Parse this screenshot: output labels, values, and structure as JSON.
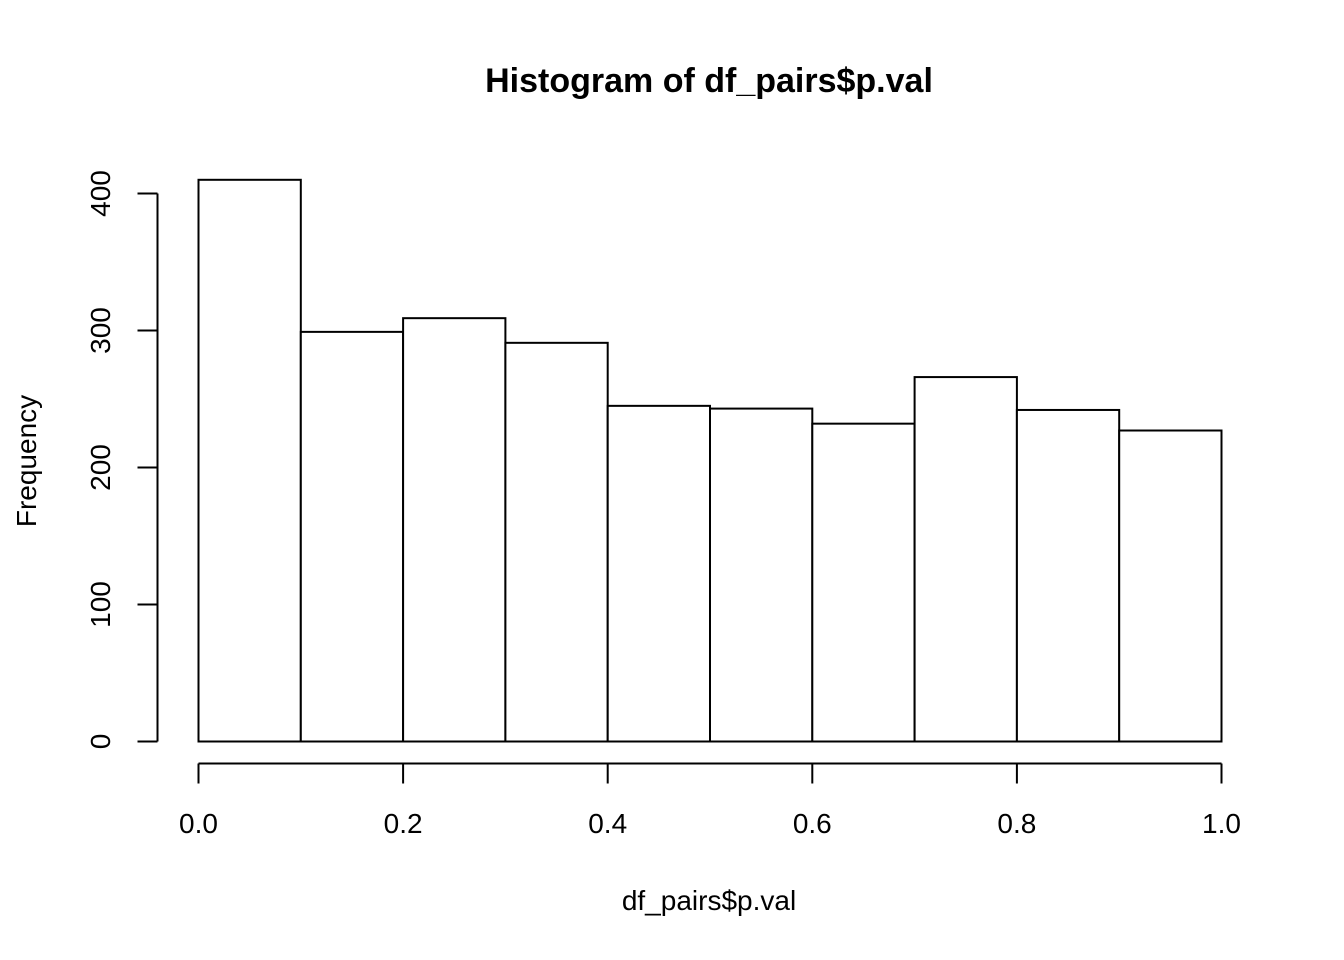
{
  "chart_data": {
    "type": "bar",
    "title": "Histogram of df_pairs$p.val",
    "xlabel": "df_pairs$p.val",
    "ylabel": "Frequency",
    "bins": [
      {
        "start": 0.0,
        "end": 0.1,
        "count": 410
      },
      {
        "start": 0.1,
        "end": 0.2,
        "count": 299
      },
      {
        "start": 0.2,
        "end": 0.3,
        "count": 309
      },
      {
        "start": 0.3,
        "end": 0.4,
        "count": 291
      },
      {
        "start": 0.4,
        "end": 0.5,
        "count": 245
      },
      {
        "start": 0.5,
        "end": 0.6,
        "count": 243
      },
      {
        "start": 0.6,
        "end": 0.7,
        "count": 232
      },
      {
        "start": 0.7,
        "end": 0.8,
        "count": 266
      },
      {
        "start": 0.8,
        "end": 0.9,
        "count": 242
      },
      {
        "start": 0.9,
        "end": 1.0,
        "count": 227
      }
    ],
    "xlim": [
      0,
      1
    ],
    "ylim": [
      0,
      400
    ],
    "x_ticks": [
      {
        "value": 0.0,
        "label": "0.0"
      },
      {
        "value": 0.2,
        "label": "0.2"
      },
      {
        "value": 0.4,
        "label": "0.4"
      },
      {
        "value": 0.6,
        "label": "0.6"
      },
      {
        "value": 0.8,
        "label": "0.8"
      },
      {
        "value": 1.0,
        "label": "1.0"
      }
    ],
    "y_ticks": [
      {
        "value": 0,
        "label": "0"
      },
      {
        "value": 100,
        "label": "100"
      },
      {
        "value": 200,
        "label": "200"
      },
      {
        "value": 300,
        "label": "300"
      },
      {
        "value": 400,
        "label": "400"
      }
    ],
    "grid": false,
    "legend": "none",
    "colors": {
      "bar_fill": "#ffffff",
      "bar_stroke": "#000000",
      "background": "#ffffff"
    }
  }
}
